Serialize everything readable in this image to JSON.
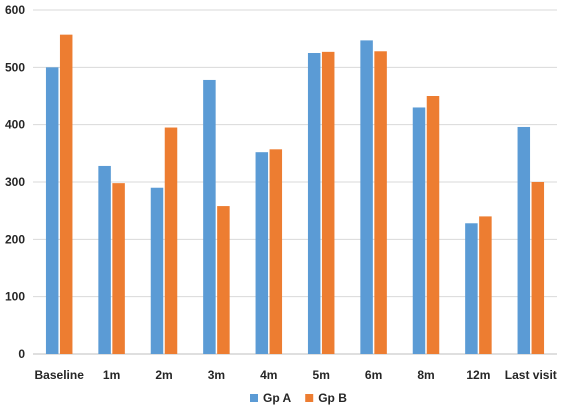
{
  "chart_data": {
    "type": "bar",
    "categories": [
      "Baseline",
      "1m",
      "2m",
      "3m",
      "4m",
      "5m",
      "6m",
      "8m",
      "12m",
      "Last visit"
    ],
    "series": [
      {
        "name": "Gp A",
        "color": "#5B9BD5",
        "values": [
          500,
          328,
          290,
          478,
          352,
          525,
          547,
          430,
          228,
          396
        ]
      },
      {
        "name": "Gp B",
        "color": "#ED7D31",
        "values": [
          557,
          298,
          395,
          258,
          357,
          527,
          528,
          450,
          240,
          300
        ]
      }
    ],
    "title": "",
    "xlabel": "",
    "ylabel": "",
    "ylim": [
      0,
      600
    ],
    "yticks": [
      0,
      100,
      200,
      300,
      400,
      500,
      600
    ],
    "grid": true,
    "legend_position": "bottom"
  }
}
